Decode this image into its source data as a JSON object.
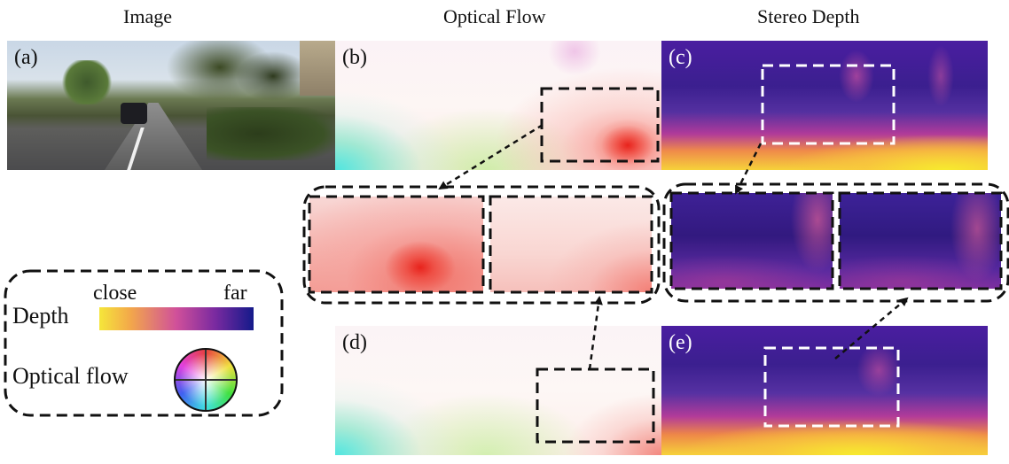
{
  "columns": {
    "image": "Image",
    "optical_flow": "Optical Flow",
    "stereo_depth": "Stereo Depth"
  },
  "panels": {
    "a": "(a)",
    "b": "(b)",
    "c": "(c)",
    "d": "(d)",
    "e": "(e)"
  },
  "legend": {
    "depth_label": "Depth",
    "close_label": "close",
    "far_label": "far",
    "flow_label": "Optical flow"
  },
  "colors": {
    "depth_close": "#f5e63a",
    "depth_mid": "#d0509a",
    "depth_far": "#141a8a",
    "flow_red": "#e8231c"
  }
}
